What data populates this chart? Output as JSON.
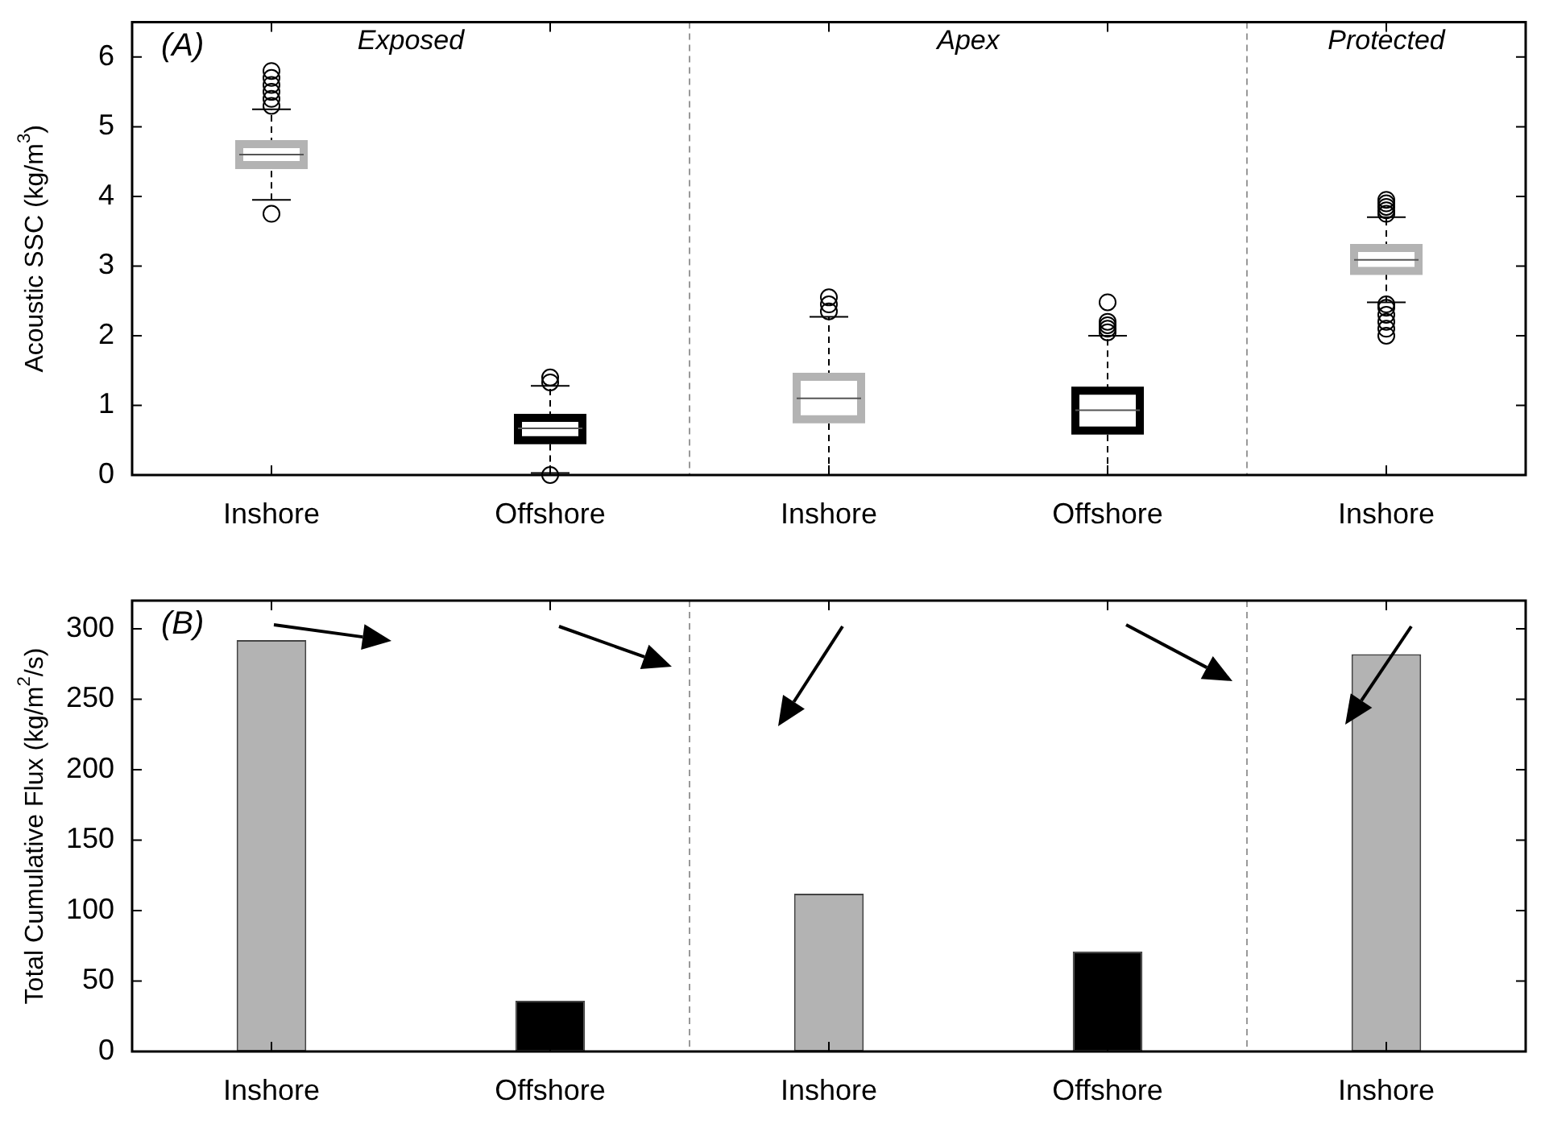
{
  "chart_data": [
    {
      "type": "box",
      "ylabel": "Acoustic SSC (kg/m$^{3}$)",
      "categories": [
        "Inshore",
        "Offshore",
        "Inshore",
        "Offshore",
        "Inshore"
      ],
      "colors": [
        "#b3b3b3",
        "#000000",
        "#b3b3b3",
        "#000000",
        "#b3b3b3"
      ],
      "boxes": [
        {
          "low": 3.95,
          "q1": 4.45,
          "median": 4.6,
          "q3": 4.75,
          "high": 5.25,
          "outliers": [
            3.75,
            5.3,
            5.4,
            5.5,
            5.6,
            5.7,
            5.8
          ]
        },
        {
          "low": 0.03,
          "q1": 0.5,
          "median": 0.67,
          "q3": 0.82,
          "high": 1.28,
          "outliers": [
            0.0,
            1.33,
            1.4
          ]
        },
        {
          "low": 0,
          "q1": 0.8,
          "median": 1.1,
          "q3": 1.41,
          "high": 2.27,
          "outliers": [
            2.35,
            2.45,
            2.55
          ]
        },
        {
          "low": 0,
          "q1": 0.64,
          "median": 0.93,
          "q3": 1.21,
          "high": 2.0,
          "outliers": [
            2.05,
            2.1,
            2.15,
            2.2,
            2.48
          ]
        },
        {
          "low": 2.48,
          "q1": 2.93,
          "median": 3.09,
          "q3": 3.26,
          "high": 3.7,
          "outliers": [
            2.0,
            2.1,
            2.2,
            2.3,
            2.4,
            2.45,
            3.75,
            3.8,
            3.85,
            3.9,
            3.95
          ]
        }
      ],
      "ylim": [
        0,
        6.5
      ],
      "yticks": [
        0,
        1,
        2,
        3,
        4,
        5,
        6
      ],
      "annotations": [
        "(A)",
        "Exposed",
        "Apex",
        "Protected"
      ]
    },
    {
      "type": "bar",
      "ylabel": "Total Cumulative Flux (kg/m$^{2}$/s)",
      "categories": [
        "Inshore",
        "Offshore",
        "Inshore",
        "Offshore",
        "Inshore"
      ],
      "values": [
        292,
        36,
        112,
        71,
        282
      ],
      "colors": [
        "#b3b3b3",
        "#000000",
        "#b3b3b3",
        "#000000",
        "#b3b3b3"
      ],
      "ylim": [
        0,
        320
      ],
      "yticks": [
        0,
        50,
        100,
        150,
        200,
        250,
        300
      ],
      "annotations": [
        "(B)"
      ]
    }
  ]
}
